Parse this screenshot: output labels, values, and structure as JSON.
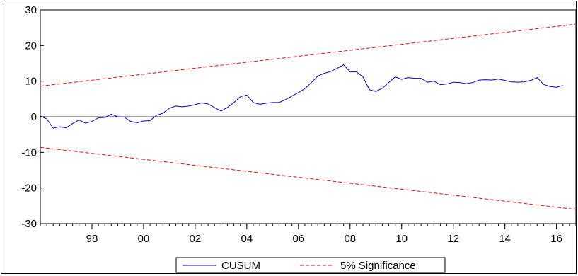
{
  "chart_data": {
    "type": "line",
    "title": "",
    "xlabel": "",
    "ylabel": "",
    "ylim": [
      -30,
      30
    ],
    "yticks": [
      30,
      20,
      10,
      0,
      -10,
      -20,
      -30
    ],
    "xlim": [
      1996.0,
      2016.75
    ],
    "xticks": [
      {
        "label": "98",
        "value": 1998
      },
      {
        "label": "00",
        "value": 2000
      },
      {
        "label": "02",
        "value": 2002
      },
      {
        "label": "04",
        "value": 2004
      },
      {
        "label": "06",
        "value": 2006
      },
      {
        "label": "08",
        "value": 2008
      },
      {
        "label": "10",
        "value": 2010
      },
      {
        "label": "12",
        "value": 2012
      },
      {
        "label": "14",
        "value": 2014
      },
      {
        "label": "16",
        "value": 2016
      }
    ],
    "grid": false,
    "zero_line": true,
    "legend_position": "bottom-center",
    "series": [
      {
        "name": "CUSUM",
        "color": "#0000cc",
        "style": "solid",
        "x": [
          1996.0,
          1996.25,
          1996.5,
          1996.75,
          1997.0,
          1997.25,
          1997.5,
          1997.75,
          1998.0,
          1998.25,
          1998.5,
          1998.75,
          1999.0,
          1999.25,
          1999.5,
          1999.75,
          2000.0,
          2000.25,
          2000.5,
          2000.75,
          2001.0,
          2001.25,
          2001.5,
          2001.75,
          2002.0,
          2002.25,
          2002.5,
          2002.75,
          2003.0,
          2003.25,
          2003.5,
          2003.75,
          2004.0,
          2004.25,
          2004.5,
          2004.75,
          2005.0,
          2005.25,
          2005.5,
          2005.75,
          2006.0,
          2006.25,
          2006.5,
          2006.75,
          2007.0,
          2007.25,
          2007.5,
          2007.75,
          2008.0,
          2008.25,
          2008.5,
          2008.75,
          2009.0,
          2009.25,
          2009.5,
          2009.75,
          2010.0,
          2010.25,
          2010.5,
          2010.75,
          2011.0,
          2011.25,
          2011.5,
          2011.75,
          2012.0,
          2012.25,
          2012.5,
          2012.75,
          2013.0,
          2013.25,
          2013.5,
          2013.75,
          2014.0,
          2014.25,
          2014.5,
          2014.75,
          2015.0,
          2015.25,
          2015.5,
          2015.75,
          2016.0,
          2016.25
        ],
        "values": [
          0.2,
          -0.6,
          -3.2,
          -2.8,
          -3.1,
          -1.9,
          -0.9,
          -1.8,
          -1.3,
          -0.3,
          -0.2,
          0.7,
          0.0,
          -0.1,
          -1.3,
          -1.7,
          -1.2,
          -1.1,
          0.4,
          1.0,
          2.4,
          3.0,
          2.8,
          3.0,
          3.4,
          3.9,
          3.6,
          2.6,
          1.6,
          2.6,
          4.0,
          5.6,
          6.1,
          4.0,
          3.5,
          3.8,
          4.0,
          4.0,
          4.8,
          5.8,
          6.8,
          7.9,
          9.6,
          11.4,
          12.2,
          12.7,
          13.6,
          14.6,
          12.6,
          12.6,
          11.2,
          7.6,
          7.1,
          8.0,
          9.6,
          11.2,
          10.5,
          11.0,
          10.8,
          10.8,
          9.7,
          10.0,
          9.0,
          9.2,
          9.7,
          9.6,
          9.3,
          9.6,
          10.3,
          10.4,
          10.3,
          10.6,
          10.2,
          9.8,
          9.7,
          9.8,
          10.2,
          11.0,
          9.1,
          8.5,
          8.3,
          8.8
        ]
      },
      {
        "name": "5% Significance",
        "color": "#ff0000",
        "style": "dashed",
        "x": [
          1996.0,
          2016.75
        ],
        "values": [
          8.6,
          26.0
        ]
      },
      {
        "name": "",
        "color": "#ff0000",
        "style": "dashed",
        "x": [
          1996.0,
          2016.75
        ],
        "values": [
          -8.6,
          -26.0
        ]
      }
    ]
  }
}
